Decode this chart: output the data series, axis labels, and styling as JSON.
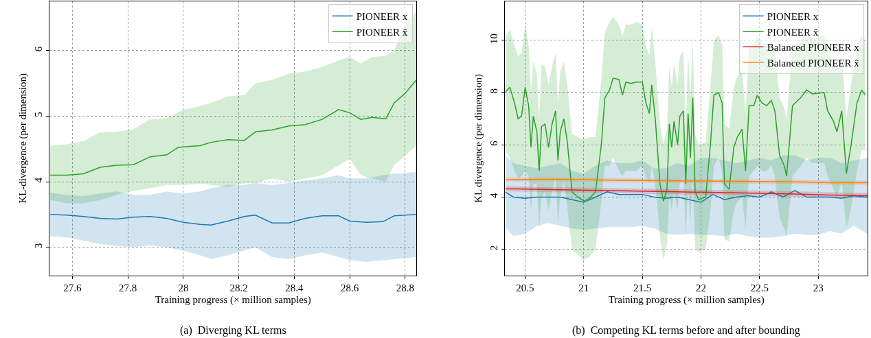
{
  "chart_data": [
    {
      "type": "line",
      "title": "(a)  Diverging KL terms",
      "xlabel": "Training progress (× million samples)",
      "ylabel": "KL-divergence (per dimension)",
      "xlim": [
        27.518,
        28.84
      ],
      "xticks": [
        27.6,
        27.8,
        28,
        28.2,
        28.4,
        28.6,
        28.8
      ],
      "ylim": [
        2.57,
        6.75
      ],
      "yticks": [
        3,
        4,
        5,
        6
      ],
      "grid": true,
      "legend": "top right",
      "series": [
        {
          "name": "PIONEER x",
          "color": "#1f77b4",
          "x": [
            27.52,
            27.58,
            27.64,
            27.7,
            27.76,
            27.82,
            27.88,
            27.94,
            28.0,
            28.06,
            28.1,
            28.16,
            28.22,
            28.26,
            28.32,
            28.38,
            28.44,
            28.5,
            28.56,
            28.6,
            28.66,
            28.72,
            28.76,
            28.84
          ],
          "values": [
            3.5,
            3.49,
            3.47,
            3.44,
            3.43,
            3.46,
            3.47,
            3.44,
            3.38,
            3.35,
            3.34,
            3.4,
            3.47,
            3.49,
            3.37,
            3.37,
            3.44,
            3.48,
            3.48,
            3.4,
            3.38,
            3.39,
            3.48,
            3.5
          ],
          "lower": [
            3.17,
            3.15,
            3.1,
            3.05,
            3.02,
            3.0,
            3.03,
            3.0,
            2.95,
            2.88,
            2.82,
            2.88,
            2.95,
            3.0,
            2.85,
            2.82,
            2.88,
            2.92,
            2.85,
            2.8,
            2.78,
            2.8,
            2.82,
            2.85
          ],
          "upper": [
            3.83,
            3.8,
            3.78,
            3.82,
            3.85,
            3.8,
            3.8,
            3.85,
            3.82,
            3.85,
            3.9,
            3.95,
            3.95,
            3.98,
            3.95,
            3.98,
            4.02,
            4.05,
            4.1,
            4.05,
            4.05,
            4.1,
            4.12,
            4.15
          ]
        },
        {
          "name": "PIONEER x̂",
          "color": "#2ca02c",
          "x": [
            27.52,
            27.58,
            27.64,
            27.7,
            27.76,
            27.82,
            27.88,
            27.94,
            27.98,
            28.0,
            28.06,
            28.1,
            28.16,
            28.22,
            28.26,
            28.32,
            28.38,
            28.44,
            28.5,
            28.56,
            28.6,
            28.64,
            28.68,
            28.73,
            28.76,
            28.8,
            28.84
          ],
          "values": [
            4.1,
            4.1,
            4.12,
            4.22,
            4.25,
            4.26,
            4.38,
            4.41,
            4.52,
            4.53,
            4.55,
            4.6,
            4.64,
            4.63,
            4.76,
            4.79,
            4.85,
            4.87,
            4.95,
            5.1,
            5.05,
            4.95,
            4.98,
            4.96,
            5.2,
            5.35,
            5.55
          ],
          "lower": [
            3.72,
            3.67,
            3.67,
            3.72,
            3.8,
            3.86,
            3.9,
            3.95,
            3.95,
            3.95,
            3.97,
            3.95,
            3.92,
            3.98,
            3.98,
            4.05,
            4.0,
            4.05,
            4.1,
            4.25,
            4.35,
            4.1,
            4.05,
            4.0,
            4.25,
            4.4,
            4.55
          ],
          "upper": [
            4.55,
            4.57,
            4.62,
            4.75,
            4.76,
            4.8,
            4.95,
            4.97,
            5.05,
            5.1,
            5.15,
            5.2,
            5.3,
            5.32,
            5.5,
            5.55,
            5.65,
            5.68,
            5.75,
            5.85,
            5.9,
            5.8,
            5.9,
            5.92,
            6.0,
            6.4,
            6.6
          ]
        }
      ]
    },
    {
      "type": "line",
      "title": "(b)  Competing KL terms before and after bounding",
      "xlabel": "Training progress (× million samples)",
      "ylabel": "KL divergence (per dimension)",
      "xlim": [
        20.33,
        23.42
      ],
      "xticks": [
        20.5,
        21,
        21.5,
        22,
        22.5,
        23
      ],
      "ylim": [
        1.0,
        11.49
      ],
      "yticks": [
        2,
        4,
        6,
        8,
        10
      ],
      "grid": true,
      "legend": "top right",
      "series": [
        {
          "name": "PIONEER x",
          "color": "#1f77b4",
          "x": [
            20.33,
            20.4,
            20.5,
            20.6,
            20.7,
            20.8,
            20.9,
            21.0,
            21.1,
            21.2,
            21.3,
            21.4,
            21.5,
            21.6,
            21.7,
            21.8,
            21.9,
            22.0,
            22.1,
            22.2,
            22.3,
            22.4,
            22.5,
            22.6,
            22.7,
            22.8,
            22.9,
            23.0,
            23.1,
            23.2,
            23.3,
            23.42
          ],
          "values": [
            4.2,
            4.0,
            3.95,
            4.0,
            4.0,
            4.0,
            3.9,
            3.8,
            4.0,
            4.2,
            4.1,
            4.1,
            4.1,
            4.0,
            3.95,
            4.0,
            3.9,
            3.8,
            4.1,
            3.9,
            4.0,
            4.05,
            4.0,
            4.2,
            4.0,
            4.25,
            4.0,
            4.0,
            4.0,
            3.95,
            4.05,
            4.0
          ],
          "lower": [
            2.85,
            2.5,
            2.6,
            2.9,
            3.0,
            2.9,
            2.8,
            2.75,
            2.8,
            2.85,
            2.85,
            2.85,
            2.9,
            2.8,
            2.6,
            2.55,
            2.6,
            2.55,
            2.55,
            2.5,
            2.6,
            2.5,
            2.45,
            2.45,
            2.5,
            2.6,
            2.55,
            2.55,
            2.7,
            2.6,
            2.9,
            2.6
          ],
          "upper": [
            5.6,
            5.3,
            5.2,
            5.1,
            5.2,
            5.3,
            5.0,
            4.9,
            5.2,
            5.4,
            5.3,
            5.3,
            5.4,
            5.1,
            5.1,
            5.3,
            5.2,
            5.5,
            5.5,
            5.4,
            5.3,
            5.4,
            5.5,
            5.4,
            5.6,
            5.6,
            5.4,
            5.5,
            5.5,
            5.3,
            5.4,
            5.5
          ]
        },
        {
          "name": "PIONEER x̂",
          "color": "#2ca02c",
          "x": [
            20.33,
            20.37,
            20.41,
            20.44,
            20.47,
            20.5,
            20.53,
            20.55,
            20.57,
            20.6,
            20.62,
            20.64,
            20.67,
            20.7,
            20.73,
            20.76,
            20.78,
            20.8,
            20.83,
            20.86,
            20.9,
            20.95,
            21.0,
            21.05,
            21.1,
            21.15,
            21.18,
            21.22,
            21.25,
            21.3,
            21.33,
            21.36,
            21.4,
            21.45,
            21.5,
            21.53,
            21.56,
            21.58,
            21.61,
            21.65,
            21.68,
            21.71,
            21.73,
            21.75,
            21.77,
            21.8,
            21.82,
            21.85,
            21.87,
            21.89,
            21.91,
            21.93,
            21.95,
            21.98,
            22.04,
            22.08,
            22.11,
            22.15,
            22.18,
            22.2,
            22.24,
            22.28,
            22.31,
            22.35,
            22.38,
            22.41,
            22.45,
            22.48,
            22.52,
            22.56,
            22.6,
            22.63,
            22.67,
            22.71,
            22.73,
            22.78,
            22.85,
            22.9,
            22.95,
            23.05,
            23.08,
            23.13,
            23.16,
            23.2,
            23.24,
            23.28,
            23.33,
            23.37,
            23.4
          ],
          "values": [
            8.0,
            8.2,
            7.6,
            7.0,
            7.1,
            8.2,
            7.5,
            5.9,
            7.1,
            6.5,
            5.0,
            6.7,
            6.8,
            5.9,
            6.8,
            7.3,
            5.4,
            6.5,
            7.0,
            6.1,
            4.2,
            4.0,
            3.85,
            3.95,
            4.2,
            6.0,
            7.8,
            8.1,
            8.55,
            8.5,
            7.9,
            8.4,
            8.35,
            8.4,
            8.4,
            7.6,
            7.2,
            8.3,
            7.0,
            4.5,
            3.85,
            4.3,
            6.8,
            5.9,
            6.9,
            6.0,
            7.1,
            7.3,
            4.5,
            7.2,
            5.5,
            7.8,
            4.2,
            3.9,
            4.0,
            6.0,
            7.9,
            8.0,
            7.6,
            4.5,
            4.3,
            5.9,
            6.3,
            6.6,
            5.0,
            7.5,
            7.5,
            7.9,
            7.6,
            7.5,
            7.7,
            7.3,
            5.6,
            5.2,
            4.8,
            7.5,
            7.8,
            8.1,
            7.95,
            8.0,
            7.3,
            6.9,
            6.5,
            7.3,
            4.9,
            6.0,
            7.6,
            8.1,
            7.9
          ],
          "lower": [
            5.8,
            5.5,
            5.0,
            4.7,
            4.8,
            5.0,
            4.8,
            3.5,
            4.5,
            4.5,
            2.8,
            4.0,
            4.2,
            3.5,
            4.2,
            4.8,
            3.0,
            4.0,
            4.6,
            3.6,
            2.0,
            1.8,
            1.6,
            1.7,
            2.0,
            3.8,
            5.2,
            5.2,
            5.5,
            5.0,
            4.8,
            5.0,
            5.0,
            5.0,
            5.2,
            4.8,
            4.5,
            5.2,
            4.5,
            2.5,
            1.6,
            2.2,
            4.0,
            3.5,
            4.2,
            3.5,
            4.5,
            4.8,
            2.5,
            4.5,
            3.0,
            4.8,
            2.0,
            1.9,
            2.0,
            3.5,
            5.2,
            5.5,
            5.0,
            2.4,
            2.3,
            3.5,
            3.8,
            4.0,
            2.8,
            4.8,
            5.0,
            5.2,
            5.0,
            5.0,
            5.2,
            4.8,
            3.2,
            2.8,
            2.5,
            4.8,
            5.2,
            5.5,
            5.3,
            5.3,
            4.8,
            4.3,
            4.0,
            4.6,
            2.8,
            3.6,
            5.0,
            5.8,
            5.8
          ],
          "upper": [
            10.1,
            10.4,
            9.8,
            9.4,
            9.5,
            10.6,
            9.8,
            8.0,
            9.2,
            8.7,
            7.0,
            9.1,
            9.0,
            8.3,
            9.0,
            9.5,
            7.6,
            8.8,
            9.2,
            8.3,
            6.4,
            6.3,
            6.2,
            6.3,
            6.3,
            8.5,
            10.3,
            10.7,
            10.9,
            10.6,
            10.2,
            10.6,
            10.6,
            10.7,
            10.6,
            9.8,
            9.4,
            10.5,
            9.2,
            6.8,
            6.0,
            6.6,
            9.0,
            8.2,
            9.1,
            8.3,
            9.4,
            9.6,
            6.6,
            9.5,
            7.8,
            10.0,
            6.4,
            6.0,
            6.1,
            8.2,
            10.0,
            10.2,
            9.8,
            6.8,
            6.6,
            8.2,
            8.6,
            8.9,
            7.2,
            9.7,
            9.8,
            10.2,
            9.9,
            9.8,
            10.0,
            9.6,
            7.8,
            7.4,
            7.0,
            9.7,
            10.0,
            10.3,
            10.1,
            10.2,
            9.6,
            9.1,
            8.7,
            9.5,
            7.0,
            8.3,
            9.8,
            10.2,
            10.0
          ]
        },
        {
          "name": "Balanced PIONEER x",
          "color": "#d62728",
          "x": [
            20.33,
            20.8,
            21.3,
            21.8,
            22.3,
            22.8,
            23.1,
            23.42
          ],
          "values": [
            4.32,
            4.28,
            4.24,
            4.2,
            4.16,
            4.12,
            4.08,
            4.06
          ],
          "lower": [
            4.22,
            4.18,
            4.14,
            4.1,
            4.06,
            4.02,
            3.98,
            3.96
          ],
          "upper": [
            4.42,
            4.38,
            4.34,
            4.3,
            4.26,
            4.22,
            4.18,
            4.16
          ]
        },
        {
          "name": "Balanced PIONEER x̂",
          "color": "#ff7f0e",
          "x": [
            20.33,
            20.8,
            21.3,
            21.8,
            22.3,
            22.8,
            23.1,
            23.42
          ],
          "values": [
            4.67,
            4.68,
            4.64,
            4.62,
            4.6,
            4.58,
            4.55,
            4.55
          ],
          "lower": [
            4.59,
            4.6,
            4.56,
            4.54,
            4.52,
            4.5,
            4.47,
            4.47
          ],
          "upper": [
            4.75,
            4.76,
            4.72,
            4.7,
            4.68,
            4.66,
            4.63,
            4.63
          ]
        }
      ]
    }
  ]
}
